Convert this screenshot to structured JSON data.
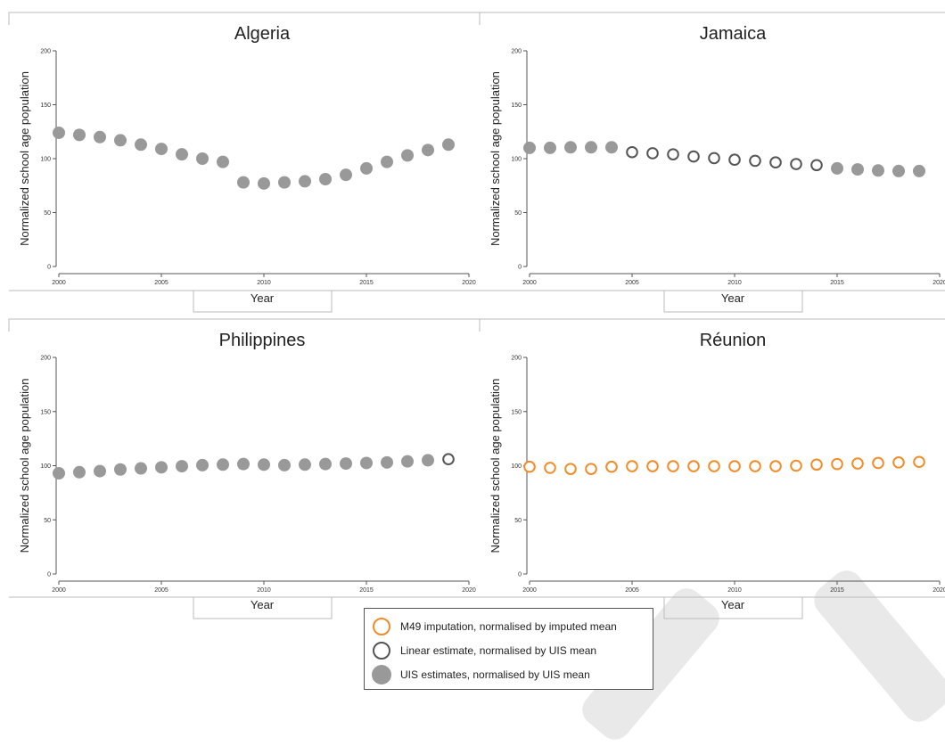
{
  "colors": {
    "uis": "#999999",
    "linear": "#555555",
    "m49": "#f28c28",
    "axis": "#555555",
    "title": "#222222"
  },
  "legend": {
    "m49": "M49 imputation, normalised by imputed mean",
    "linear": "Linear estimate, normalised by UIS mean",
    "uis": "UIS estimates, normalised by UIS mean"
  },
  "chart_data": [
    {
      "type": "scatter",
      "title": "Algeria",
      "xlabel": "Year",
      "ylabel": "Normalized school age population",
      "xlim": [
        2000,
        2020
      ],
      "ylim": [
        0,
        200
      ],
      "xticks": [
        "2000",
        "2005",
        "2010",
        "2015",
        "2020"
      ],
      "yticks": [
        "0",
        "50",
        "100",
        "150",
        "200"
      ],
      "x": [
        2000,
        2001,
        2002,
        2003,
        2004,
        2005,
        2006,
        2007,
        2008,
        2009,
        2010,
        2011,
        2012,
        2013,
        2014,
        2015,
        2016,
        2017,
        2018,
        2019
      ],
      "y": [
        124,
        122,
        120,
        117,
        113,
        109,
        104,
        100,
        97,
        78,
        77,
        78,
        79,
        81,
        85,
        91,
        97,
        103,
        108,
        113
      ],
      "kind": [
        "uis",
        "uis",
        "uis",
        "uis",
        "uis",
        "uis",
        "uis",
        "uis",
        "uis",
        "uis",
        "uis",
        "uis",
        "uis",
        "uis",
        "uis",
        "uis",
        "uis",
        "uis",
        "uis",
        "uis"
      ]
    },
    {
      "type": "scatter",
      "title": "Jamaica",
      "xlabel": "Year",
      "ylabel": "Normalized school age population",
      "xlim": [
        2000,
        2020
      ],
      "ylim": [
        0,
        200
      ],
      "xticks": [
        "2000",
        "2005",
        "2010",
        "2015",
        "2020"
      ],
      "yticks": [
        "0",
        "50",
        "100",
        "150",
        "200"
      ],
      "x": [
        2000,
        2001,
        2002,
        2003,
        2004,
        2005,
        2006,
        2007,
        2008,
        2009,
        2010,
        2011,
        2012,
        2013,
        2014,
        2015,
        2016,
        2017,
        2018,
        2019
      ],
      "y": [
        110,
        110,
        110.5,
        110.5,
        110.5,
        106,
        105,
        104,
        102,
        100.5,
        99,
        98,
        96.5,
        95,
        94,
        91,
        90,
        89,
        88.5,
        88.5
      ],
      "kind": [
        "uis",
        "uis",
        "uis",
        "uis",
        "uis",
        "linear",
        "linear",
        "linear",
        "linear",
        "linear",
        "linear",
        "linear",
        "linear",
        "linear",
        "linear",
        "uis",
        "uis",
        "uis",
        "uis",
        "uis"
      ]
    },
    {
      "type": "scatter",
      "title": "Philippines",
      "xlabel": "Year",
      "ylabel": "Normalized school age population",
      "xlim": [
        2000,
        2020
      ],
      "ylim": [
        0,
        200
      ],
      "xticks": [
        "2000",
        "2005",
        "2010",
        "2015",
        "2020"
      ],
      "yticks": [
        "0",
        "50",
        "100",
        "150",
        "200"
      ],
      "x": [
        2000,
        2001,
        2002,
        2003,
        2004,
        2005,
        2006,
        2007,
        2008,
        2009,
        2010,
        2011,
        2012,
        2013,
        2014,
        2015,
        2016,
        2017,
        2018,
        2019
      ],
      "y": [
        93,
        94,
        95,
        96.5,
        97.5,
        98.5,
        99.5,
        100.5,
        101,
        101.5,
        101,
        100.5,
        101,
        101.5,
        102,
        102.5,
        103,
        104,
        105,
        106
      ],
      "kind": [
        "uis",
        "uis",
        "uis",
        "uis",
        "uis",
        "uis",
        "uis",
        "uis",
        "uis",
        "uis",
        "uis",
        "uis",
        "uis",
        "uis",
        "uis",
        "uis",
        "uis",
        "uis",
        "uis",
        "linear"
      ]
    },
    {
      "type": "scatter",
      "title": "Réunion",
      "xlabel": "Year",
      "ylabel": "Normalized school age population",
      "xlim": [
        2000,
        2020
      ],
      "ylim": [
        0,
        200
      ],
      "xticks": [
        "2000",
        "2005",
        "2010",
        "2015",
        "2020"
      ],
      "yticks": [
        "0",
        "50",
        "100",
        "150",
        "200"
      ],
      "x": [
        2000,
        2001,
        2002,
        2003,
        2004,
        2005,
        2006,
        2007,
        2008,
        2009,
        2010,
        2011,
        2012,
        2013,
        2014,
        2015,
        2016,
        2017,
        2018,
        2019
      ],
      "y": [
        99,
        98,
        97,
        97,
        99,
        99.5,
        99.5,
        99.5,
        99.5,
        99.5,
        99.5,
        99.5,
        99.5,
        100,
        101,
        101.5,
        102,
        102.5,
        103,
        103.5
      ],
      "kind": [
        "m49",
        "m49",
        "m49",
        "m49",
        "m49",
        "m49",
        "m49",
        "m49",
        "m49",
        "m49",
        "m49",
        "m49",
        "m49",
        "m49",
        "m49",
        "m49",
        "m49",
        "m49",
        "m49",
        "m49"
      ]
    }
  ]
}
